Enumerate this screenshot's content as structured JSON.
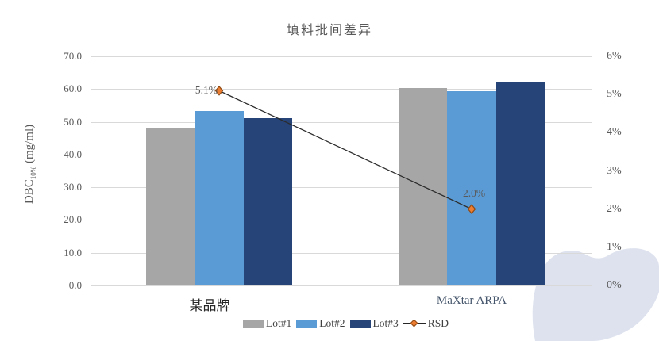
{
  "chart_data": {
    "type": "bar",
    "subtype": "grouped-bars-with-line-overlay",
    "title": "填料批间差异",
    "categories": [
      "某品牌",
      "MaXtar ARPA"
    ],
    "series": [
      {
        "name": "Lot#1",
        "type": "bar",
        "color": "#a6a6a6",
        "values": [
          48.3,
          60.4
        ]
      },
      {
        "name": "Lot#2",
        "type": "bar",
        "color": "#5b9bd5",
        "values": [
          53.4,
          59.4
        ]
      },
      {
        "name": "Lot#3",
        "type": "bar",
        "color": "#264478",
        "values": [
          51.0,
          62.0
        ]
      },
      {
        "name": "RSD",
        "type": "line",
        "color": "#2b2b2b",
        "marker_fill": "#ed7d31",
        "marker_stroke": "#8f4a14",
        "values_pct": [
          5.1,
          2.0
        ],
        "point_labels": [
          "5.1%",
          "2.0%"
        ],
        "axis": "right"
      }
    ],
    "left_axis": {
      "label_prefix": "DBC",
      "label_sub": "10%",
      "label_suffix": " (mg/ml)",
      "min": 0,
      "max": 70,
      "step": 10,
      "ticks": [
        "70.0",
        "60.0",
        "50.0",
        "40.0",
        "30.0",
        "20.0",
        "10.0",
        "0.0"
      ]
    },
    "right_axis": {
      "min": 0,
      "max": 6,
      "step": 1,
      "ticks": [
        "6%",
        "5%",
        "4%",
        "3%",
        "2%",
        "1%",
        "0%"
      ]
    },
    "legend": {
      "position": "bottom",
      "entries": [
        "Lot#1",
        "Lot#2",
        "Lot#3",
        "RSD"
      ]
    },
    "grid": "horizontal-on",
    "colors": {
      "gridline": "#d9d9d9",
      "axis_text": "#595959",
      "title_text": "#595959",
      "category_cjk_text": "#262626",
      "category_latin_text": "#44546a",
      "rsd_line": "#2b2b2b",
      "rsd_marker": "#ed7d31",
      "decor_blob": "#dde2ee"
    }
  }
}
